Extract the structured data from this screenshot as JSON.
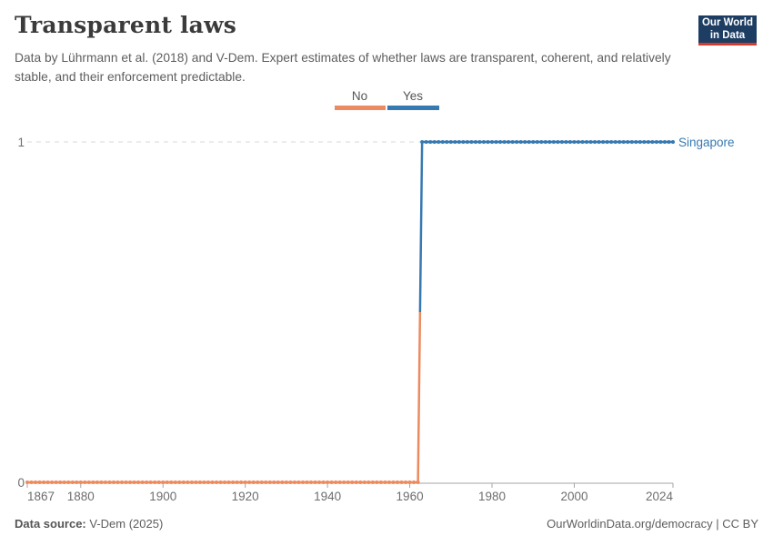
{
  "header": {
    "title": "Transparent laws",
    "subtitle": "Data by Lührmann et al. (2018) and V-Dem. Expert estimates of whether laws are transparent, coherent, and relatively stable, and their enforcement predictable."
  },
  "logo": {
    "line1": "Our World",
    "line2": "in Data",
    "bg_color": "#1d3d63",
    "accent_color": "#d23b2e"
  },
  "legend": {
    "items": [
      {
        "label": "No",
        "color": "#ED8A5F"
      },
      {
        "label": "Yes",
        "color": "#3779B1"
      }
    ]
  },
  "entity_label": "Singapore",
  "footer": {
    "source_label": "Data source:",
    "source_value": " V-Dem (2025)",
    "right_text": "OurWorldinData.org/democracy | CC BY"
  },
  "chart_data": {
    "type": "line",
    "title": "Transparent laws",
    "entity": "Singapore",
    "xlim": [
      1867,
      2024
    ],
    "ylim": [
      0,
      1
    ],
    "x_ticks": [
      1867,
      1880,
      1900,
      1920,
      1940,
      1960,
      1980,
      2000,
      2024
    ],
    "y_ticks": [
      0,
      1
    ],
    "grid": "dashed horizontal gridline at y=1, solid axis at y=0",
    "legend_position": "top-center",
    "marker": "yearly dots on line",
    "series": [
      {
        "name": "No",
        "color": "#ED8A5F",
        "value": 0,
        "year_start": 1867,
        "year_end": 1962
      },
      {
        "name": "Yes",
        "color": "#3779B1",
        "value": 1,
        "year_start": 1963,
        "year_end": 2024
      }
    ],
    "annotation": "Value steps from 0 (No) to 1 (Yes) between 1962 and 1963",
    "colors": {
      "gridline": "#d9d9d9",
      "axis": "#a5a5a5",
      "tick_label": "#6e6e6e"
    }
  }
}
